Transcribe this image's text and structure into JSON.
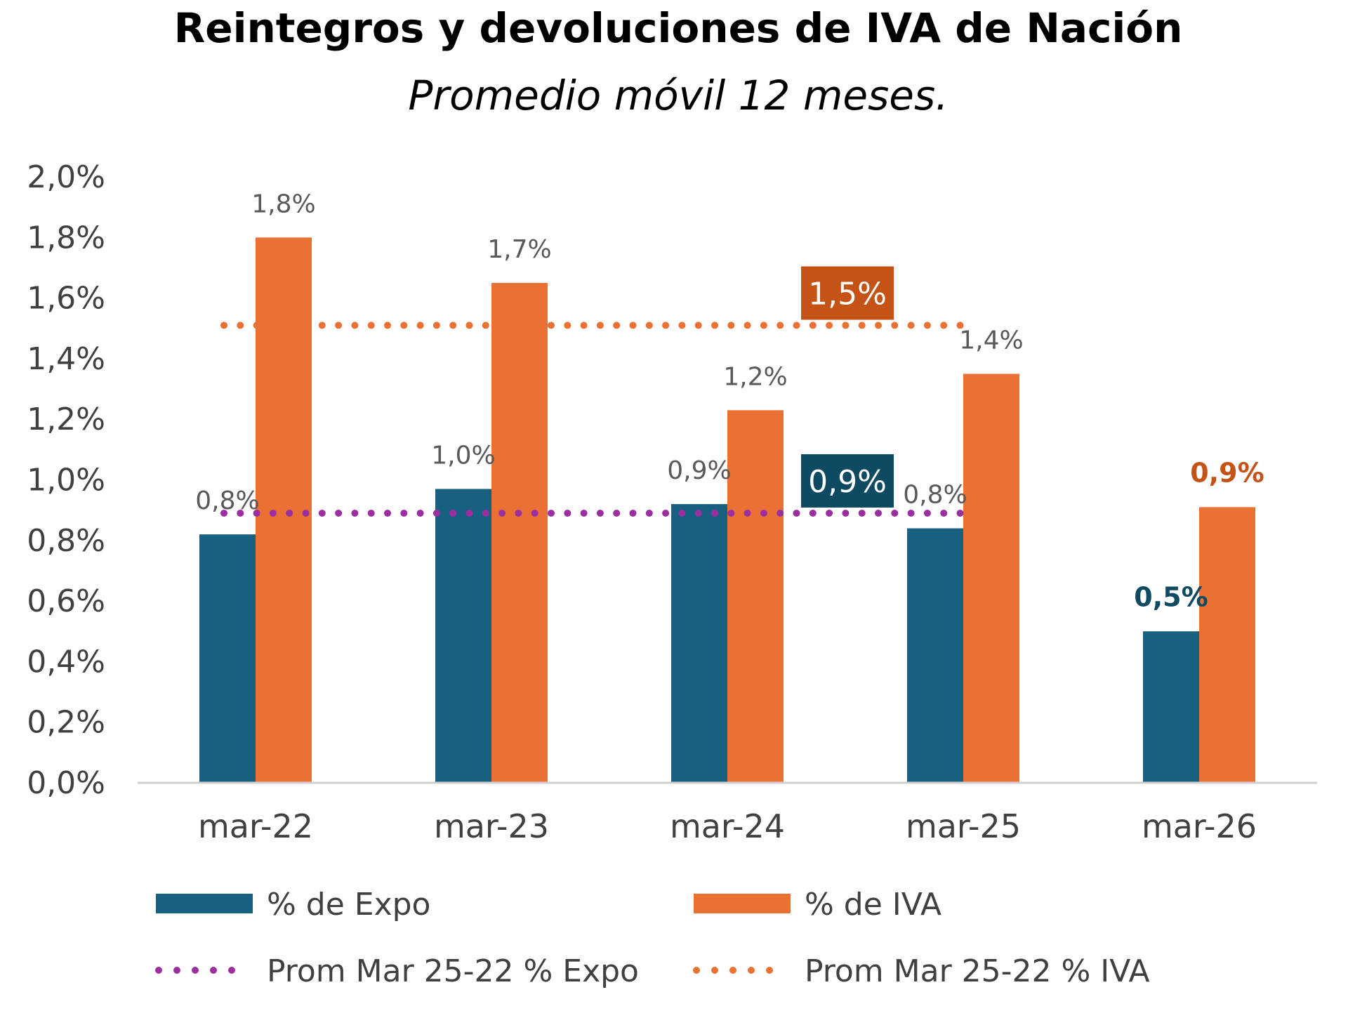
{
  "chart_data": {
    "type": "bar",
    "title": "Reintegros y devoluciones de IVA de Nación",
    "subtitle": "Promedio móvil 12 meses.",
    "categories": [
      "mar-22",
      "mar-23",
      "mar-24",
      "mar-25",
      "mar-26"
    ],
    "series": [
      {
        "name": "% de Expo",
        "color": "#17607f",
        "values": [
          0.82,
          0.97,
          0.92,
          0.84,
          0.5
        ],
        "labels": [
          "0,8%",
          "1,0%",
          "0,9%",
          "0,8%",
          "0,5%"
        ]
      },
      {
        "name": "% de IVA",
        "color": "#ea7133",
        "values": [
          1.8,
          1.65,
          1.23,
          1.35,
          0.91
        ],
        "labels": [
          "1,8%",
          "1,7%",
          "1,2%",
          "1,4%",
          "0,9%"
        ]
      }
    ],
    "reference_lines": [
      {
        "name": "Prom Mar 25-22 % Expo",
        "value": 0.89,
        "label": "0,9%",
        "color": "#9b2fa0",
        "label_bg": "#0f4a63",
        "style": "dotted"
      },
      {
        "name": "Prom Mar 25-22 % IVA",
        "value": 1.51,
        "label": "1,5%",
        "color": "#ea7133",
        "label_bg": "#c55316",
        "style": "dotted"
      }
    ],
    "highlight_label_colors": {
      "expo": "#0f4a63",
      "iva": "#c55316"
    },
    "y_ticks": [
      "0,0%",
      "0,2%",
      "0,4%",
      "0,6%",
      "0,8%",
      "1,0%",
      "1,2%",
      "1,4%",
      "1,6%",
      "1,8%",
      "2,0%"
    ],
    "ylim": [
      0,
      2.0
    ],
    "grid": false,
    "legend_position": "bottom"
  }
}
